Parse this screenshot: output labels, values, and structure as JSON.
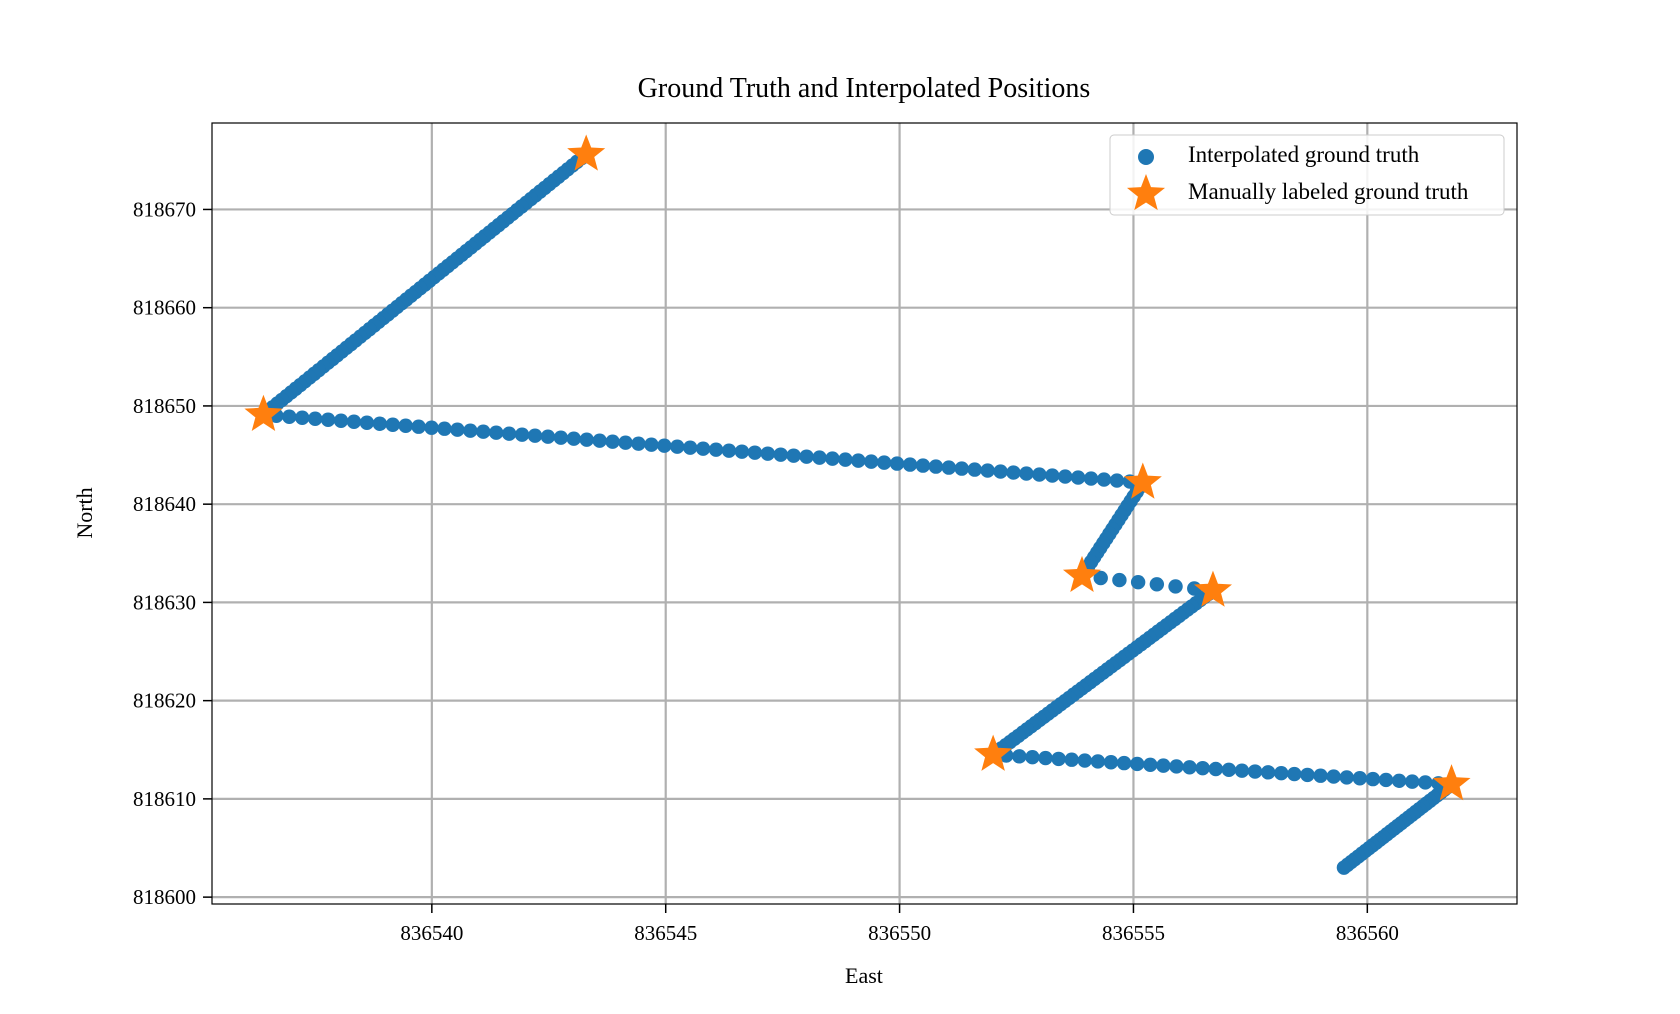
{
  "chart_data": {
    "type": "scatter",
    "title": "Ground Truth and Interpolated Positions",
    "xlabel": "East",
    "ylabel": "North",
    "xlim": [
      836535.3,
      836563.2
    ],
    "ylim": [
      818599.3,
      818678.8
    ],
    "xticks": [
      836540,
      836545,
      836550,
      836555,
      836560
    ],
    "yticks": [
      818600,
      818610,
      818620,
      818630,
      818640,
      818650,
      818660,
      818670
    ],
    "grid": true,
    "legend_position": "top-right",
    "colors": {
      "interpolated": "#1f77b4",
      "labeled": "#ff7f0e",
      "grid": "#b0b0b0"
    },
    "series": [
      {
        "name": "Interpolated ground truth",
        "marker": "circle",
        "segments": [
          {
            "from": [
              836543.3,
              818675.6
            ],
            "to": [
              836536.4,
              818649.1
            ],
            "n": 70
          },
          {
            "from": [
              836536.4,
              818649.1
            ],
            "to": [
              836555.2,
              818642.2
            ],
            "n": 68
          },
          {
            "from": [
              836555.2,
              818642.2
            ],
            "to": [
              836553.9,
              818632.7
            ],
            "n": 20
          },
          {
            "from": [
              836553.9,
              818632.7
            ],
            "to": [
              836556.7,
              818631.2
            ],
            "n": 7
          },
          {
            "from": [
              836556.7,
              818631.2
            ],
            "to": [
              836552.0,
              818614.5
            ],
            "n": 52
          },
          {
            "from": [
              836552.0,
              818614.5
            ],
            "to": [
              836561.8,
              818611.5
            ],
            "n": 35
          },
          {
            "from": [
              836561.8,
              818611.5
            ],
            "to": [
              836559.5,
              818603.0
            ],
            "n": 30
          }
        ]
      },
      {
        "name": "Manually labeled ground truth",
        "marker": "star",
        "points": [
          [
            836543.3,
            818675.6
          ],
          [
            836536.4,
            818649.1
          ],
          [
            836555.2,
            818642.2
          ],
          [
            836553.9,
            818632.7
          ],
          [
            836556.7,
            818631.2
          ],
          [
            836552.0,
            818614.5
          ],
          [
            836561.8,
            818611.5
          ]
        ]
      }
    ]
  }
}
